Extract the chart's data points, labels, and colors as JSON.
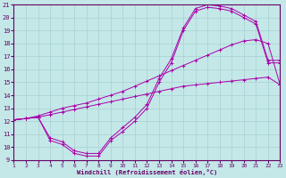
{
  "xlabel": "Windchill (Refroidissement éolien,°C)",
  "bg_color": "#c4e8e8",
  "grid_color": "#a8d0d0",
  "line_color": "#aa00aa",
  "xlim": [
    1,
    23
  ],
  "ylim": [
    9,
    21
  ],
  "xticks": [
    1,
    2,
    3,
    4,
    5,
    6,
    7,
    8,
    9,
    10,
    11,
    12,
    13,
    14,
    15,
    16,
    17,
    18,
    19,
    20,
    21,
    22,
    23
  ],
  "yticks": [
    9,
    10,
    11,
    12,
    13,
    14,
    15,
    16,
    17,
    18,
    19,
    20,
    21
  ],
  "line1_x": [
    1,
    2,
    3,
    4,
    5,
    6,
    7,
    8,
    9,
    10,
    11,
    12,
    13,
    14,
    15,
    16,
    17,
    18,
    19,
    20,
    21,
    22,
    23
  ],
  "line1_y": [
    12.1,
    12.2,
    12.3,
    12.5,
    12.7,
    12.9,
    13.1,
    13.3,
    13.5,
    13.7,
    13.9,
    14.1,
    14.3,
    14.5,
    14.7,
    14.8,
    14.9,
    15.0,
    15.1,
    15.2,
    15.3,
    15.4,
    14.8
  ],
  "line2_x": [
    1,
    2,
    3,
    4,
    5,
    6,
    7,
    8,
    9,
    10,
    11,
    12,
    13,
    14,
    15,
    16,
    17,
    18,
    19,
    20,
    21,
    22,
    23
  ],
  "line2_y": [
    12.1,
    12.2,
    12.4,
    12.7,
    13.0,
    13.2,
    13.4,
    13.7,
    14.0,
    14.3,
    14.7,
    15.1,
    15.5,
    15.9,
    16.3,
    16.7,
    17.1,
    17.5,
    17.9,
    18.2,
    18.3,
    18.0,
    14.8
  ],
  "line3_x": [
    1,
    2,
    3,
    4,
    5,
    6,
    7,
    8,
    9,
    10,
    11,
    12,
    13,
    14,
    15,
    16,
    17,
    18,
    19,
    20,
    21,
    22,
    23
  ],
  "line3_y": [
    12.1,
    12.2,
    12.3,
    10.5,
    10.2,
    9.5,
    9.3,
    9.3,
    10.5,
    11.2,
    12.0,
    13.0,
    15.0,
    16.5,
    19.0,
    20.5,
    20.8,
    20.7,
    20.5,
    20.0,
    19.5,
    16.5,
    16.5
  ],
  "line4_x": [
    1,
    2,
    3,
    4,
    5,
    6,
    7,
    8,
    9,
    10,
    11,
    12,
    13,
    14,
    15,
    16,
    17,
    18,
    19,
    20,
    21,
    22,
    23
  ],
  "line4_y": [
    12.1,
    12.2,
    12.3,
    10.7,
    10.4,
    9.7,
    9.5,
    9.5,
    10.7,
    11.5,
    12.3,
    13.3,
    15.3,
    16.8,
    19.2,
    20.7,
    21.0,
    20.9,
    20.7,
    20.2,
    19.7,
    16.7,
    16.7
  ]
}
